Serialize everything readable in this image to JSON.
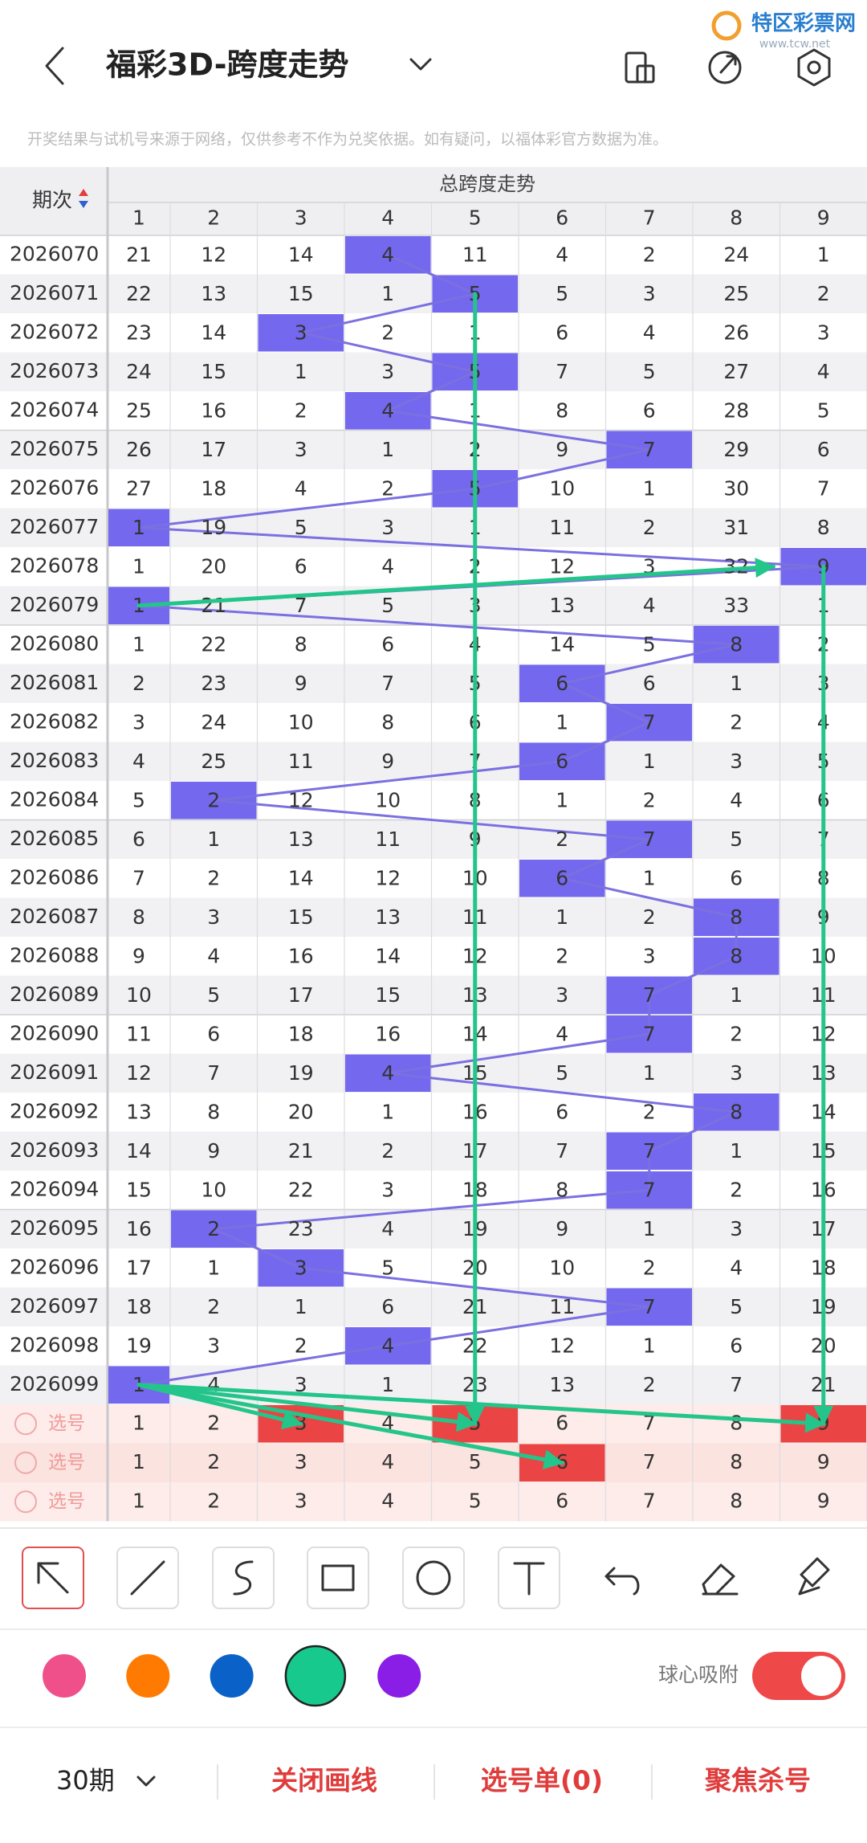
{
  "header": {
    "title": "福彩3D-跨度走势",
    "watermark": "特区彩票网",
    "watermark_url": "www.tcw.net"
  },
  "notice": "开奖结果与试机号来源于网络，仅供参考不作为兑奖依据。如有疑问，以福体彩官方数据为准。",
  "table": {
    "period_header": "期次",
    "group_header": "总跨度走势",
    "columns": [
      1,
      2,
      3,
      4,
      5,
      6,
      7,
      8,
      9
    ],
    "highlight_color": "#7468ee",
    "line_color": "#7b70e0",
    "rows": [
      {
        "period": "2026070",
        "span": 4,
        "values": [
          21,
          12,
          14,
          4,
          11,
          4,
          2,
          24,
          1
        ]
      },
      {
        "period": "2026071",
        "span": 5,
        "values": [
          22,
          13,
          15,
          1,
          5,
          5,
          3,
          25,
          2
        ]
      },
      {
        "period": "2026072",
        "span": 3,
        "values": [
          23,
          14,
          3,
          2,
          1,
          6,
          4,
          26,
          3
        ]
      },
      {
        "period": "2026073",
        "span": 5,
        "values": [
          24,
          15,
          1,
          3,
          5,
          7,
          5,
          27,
          4
        ]
      },
      {
        "period": "2026074",
        "span": 4,
        "values": [
          25,
          16,
          2,
          4,
          1,
          8,
          6,
          28,
          5
        ]
      },
      {
        "period": "2026075",
        "span": 7,
        "values": [
          26,
          17,
          3,
          1,
          2,
          9,
          7,
          29,
          6
        ]
      },
      {
        "period": "2026076",
        "span": 5,
        "values": [
          27,
          18,
          4,
          2,
          5,
          10,
          1,
          30,
          7
        ]
      },
      {
        "period": "2026077",
        "span": 1,
        "values": [
          1,
          19,
          5,
          3,
          1,
          11,
          2,
          31,
          8
        ]
      },
      {
        "period": "2026078",
        "span": 9,
        "values": [
          1,
          20,
          6,
          4,
          2,
          12,
          3,
          32,
          9
        ]
      },
      {
        "period": "2026079",
        "span": 1,
        "values": [
          1,
          21,
          7,
          5,
          3,
          13,
          4,
          33,
          1
        ]
      },
      {
        "period": "2026080",
        "span": 8,
        "values": [
          1,
          22,
          8,
          6,
          4,
          14,
          5,
          8,
          2
        ]
      },
      {
        "period": "2026081",
        "span": 6,
        "values": [
          2,
          23,
          9,
          7,
          5,
          6,
          6,
          1,
          3
        ]
      },
      {
        "period": "2026082",
        "span": 7,
        "values": [
          3,
          24,
          10,
          8,
          6,
          1,
          7,
          2,
          4
        ]
      },
      {
        "period": "2026083",
        "span": 6,
        "values": [
          4,
          25,
          11,
          9,
          7,
          6,
          1,
          3,
          5
        ]
      },
      {
        "period": "2026084",
        "span": 2,
        "values": [
          5,
          2,
          12,
          10,
          8,
          1,
          2,
          4,
          6
        ]
      },
      {
        "period": "2026085",
        "span": 7,
        "values": [
          6,
          1,
          13,
          11,
          9,
          2,
          7,
          5,
          7
        ]
      },
      {
        "period": "2026086",
        "span": 6,
        "values": [
          7,
          2,
          14,
          12,
          10,
          6,
          1,
          6,
          8
        ]
      },
      {
        "period": "2026087",
        "span": 8,
        "values": [
          8,
          3,
          15,
          13,
          11,
          1,
          2,
          8,
          9
        ]
      },
      {
        "period": "2026088",
        "span": 8,
        "values": [
          9,
          4,
          16,
          14,
          12,
          2,
          3,
          8,
          10
        ]
      },
      {
        "period": "2026089",
        "span": 7,
        "values": [
          10,
          5,
          17,
          15,
          13,
          3,
          7,
          1,
          11
        ]
      },
      {
        "period": "2026090",
        "span": 7,
        "values": [
          11,
          6,
          18,
          16,
          14,
          4,
          7,
          2,
          12
        ]
      },
      {
        "period": "2026091",
        "span": 4,
        "values": [
          12,
          7,
          19,
          4,
          15,
          5,
          1,
          3,
          13
        ]
      },
      {
        "period": "2026092",
        "span": 8,
        "values": [
          13,
          8,
          20,
          1,
          16,
          6,
          2,
          8,
          14
        ]
      },
      {
        "period": "2026093",
        "span": 7,
        "values": [
          14,
          9,
          21,
          2,
          17,
          7,
          7,
          1,
          15
        ]
      },
      {
        "period": "2026094",
        "span": 7,
        "values": [
          15,
          10,
          22,
          3,
          18,
          8,
          7,
          2,
          16
        ]
      },
      {
        "period": "2026095",
        "span": 2,
        "values": [
          16,
          2,
          23,
          4,
          19,
          9,
          1,
          3,
          17
        ]
      },
      {
        "period": "2026096",
        "span": 3,
        "values": [
          17,
          1,
          3,
          5,
          20,
          10,
          2,
          4,
          18
        ]
      },
      {
        "period": "2026097",
        "span": 7,
        "values": [
          18,
          2,
          1,
          6,
          21,
          11,
          7,
          5,
          19
        ]
      },
      {
        "period": "2026098",
        "span": 4,
        "values": [
          19,
          3,
          2,
          4,
          22,
          12,
          1,
          6,
          20
        ]
      },
      {
        "period": "2026099",
        "span": 1,
        "values": [
          1,
          4,
          3,
          1,
          23,
          13,
          2,
          7,
          21
        ]
      }
    ],
    "select_label": "选号",
    "select_rows": [
      [
        3,
        5,
        9
      ],
      [
        6
      ],
      []
    ]
  },
  "toolbar": {
    "colors": [
      "#f0508a",
      "#ff7a00",
      "#0a62c8",
      "#18c98e",
      "#8a1ee6"
    ],
    "selected_color": "#18c98e",
    "snap_label": "球心吸附",
    "snap_on": true
  },
  "footer": {
    "period_count": "30期",
    "close_lines": "关闭画线",
    "ticket": "选号单(0)",
    "focus": "聚焦杀号"
  }
}
